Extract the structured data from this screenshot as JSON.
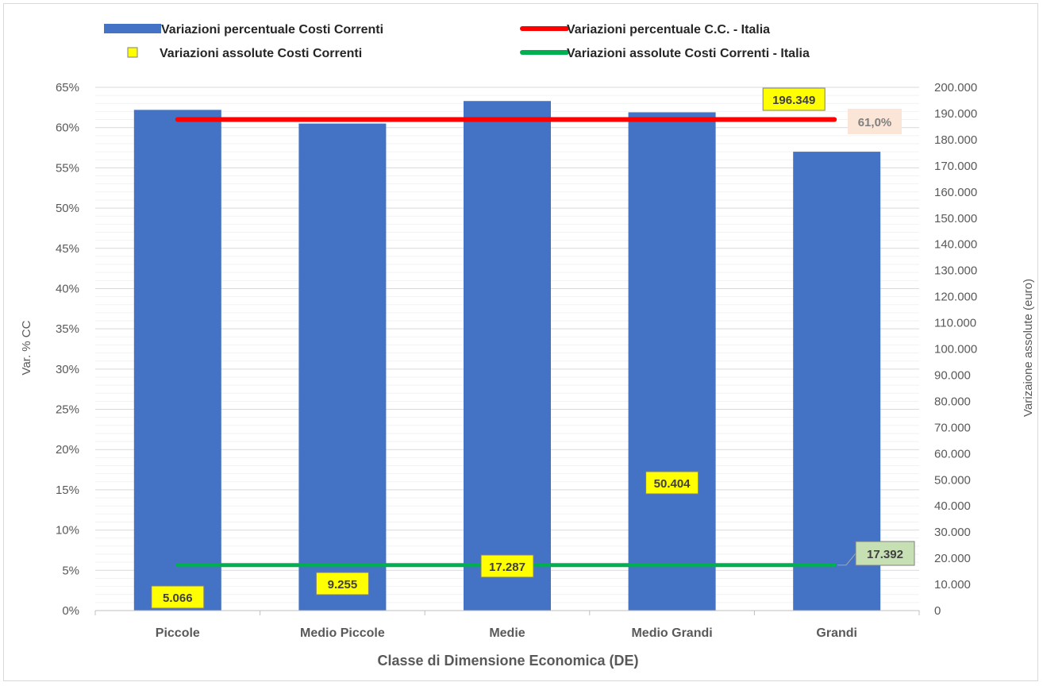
{
  "chart_data": {
    "type": "bar",
    "categories": [
      "Piccole",
      "Medio Piccole",
      "Medie",
      "Medio Grandi",
      "Grandi"
    ],
    "series": [
      {
        "name": "Variazioni percentuale Costi Correnti",
        "kind": "bar",
        "axis": "left",
        "color": "#4472c4",
        "values": [
          62.2,
          60.5,
          63.3,
          61.9,
          57.0
        ]
      },
      {
        "name": "Variazioni assolute Costi Correnti",
        "kind": "marker",
        "axis": "right",
        "color": "#ffff00",
        "values": [
          5066,
          9255,
          17287,
          50404,
          196349
        ],
        "labels": [
          "5.066",
          "9.255",
          "17.287",
          "50.404",
          "196.349"
        ]
      },
      {
        "name": "Variazioni percentuale C.C. - Italia",
        "kind": "line",
        "axis": "left",
        "color": "#ff0000",
        "values": [
          61.0,
          61.0,
          61.0,
          61.0,
          61.0
        ],
        "end_label": "61,0%"
      },
      {
        "name": "Variazioni assolute Costi Correnti - Italia",
        "kind": "line",
        "axis": "right",
        "color": "#00b050",
        "values": [
          17392,
          17392,
          17392,
          17392,
          17392
        ],
        "end_label": "17.392"
      }
    ],
    "ylabel": "Var. % CC",
    "y2label": "Varizaione assolute (euro)",
    "xlabel": "Classe di Dimensione Economica (DE)",
    "ylim": [
      0,
      65
    ],
    "y2lim": [
      0,
      200000
    ],
    "yticks": [
      "0%",
      "5%",
      "10%",
      "15%",
      "20%",
      "25%",
      "30%",
      "35%",
      "40%",
      "45%",
      "50%",
      "55%",
      "60%",
      "65%"
    ],
    "y2ticks": [
      "0",
      "10.000",
      "20.000",
      "30.000",
      "40.000",
      "50.000",
      "60.000",
      "70.000",
      "80.000",
      "90.000",
      "100.000",
      "110.000",
      "120.000",
      "130.000",
      "140.000",
      "150.000",
      "160.000",
      "170.000",
      "180.000",
      "190.000",
      "200.000"
    ],
    "grid": true,
    "legend_position": "top"
  }
}
